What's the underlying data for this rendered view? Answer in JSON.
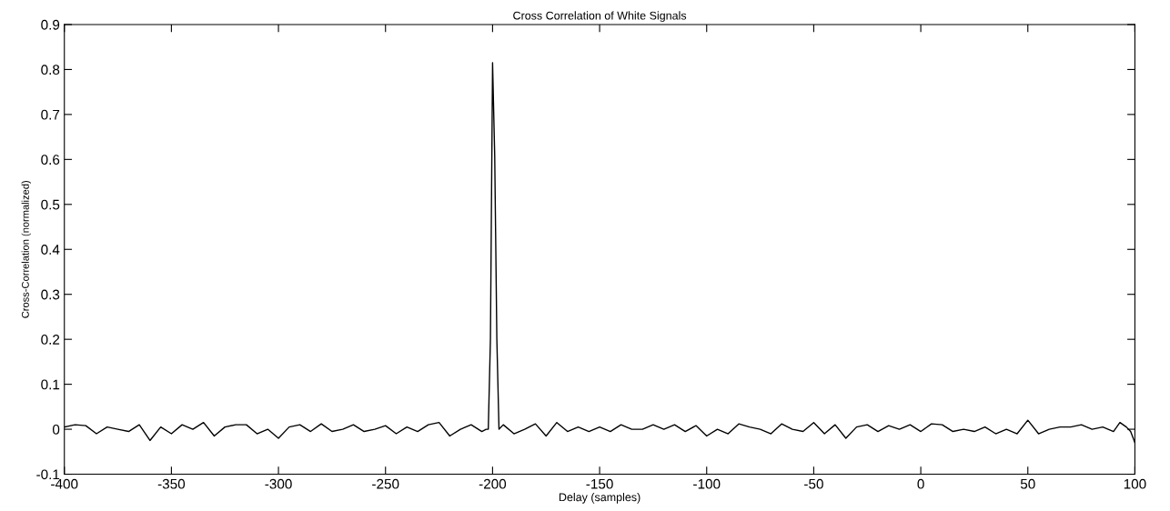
{
  "chart_data": {
    "type": "line",
    "title": "Cross Correlation of White Signals",
    "xlabel": "Delay (samples)",
    "ylabel": "Cross-Correlation (normalized)",
    "x": [
      -400,
      -395,
      -390,
      -385,
      -380,
      -375,
      -370,
      -365,
      -360,
      -355,
      -350,
      -345,
      -340,
      -335,
      -330,
      -325,
      -320,
      -315,
      -310,
      -305,
      -300,
      -295,
      -290,
      -285,
      -280,
      -275,
      -270,
      -265,
      -260,
      -255,
      -250,
      -245,
      -240,
      -235,
      -230,
      -225,
      -220,
      -215,
      -210,
      -205,
      -203,
      -202,
      -201,
      -200,
      -199,
      -198,
      -197,
      -195,
      -190,
      -185,
      -180,
      -175,
      -170,
      -165,
      -160,
      -155,
      -150,
      -145,
      -140,
      -135,
      -130,
      -125,
      -120,
      -115,
      -110,
      -105,
      -100,
      -95,
      -90,
      -85,
      -80,
      -75,
      -70,
      -65,
      -60,
      -55,
      -50,
      -45,
      -40,
      -35,
      -30,
      -25,
      -20,
      -15,
      -10,
      -5,
      0,
      5,
      10,
      15,
      20,
      25,
      30,
      35,
      40,
      45,
      50,
      55,
      60,
      65,
      70,
      75,
      80,
      85,
      90,
      93,
      96,
      98,
      100
    ],
    "series": [
      {
        "color": "#000000",
        "values": [
          0.005,
          0.01,
          0.008,
          -0.01,
          0.005,
          0.0,
          -0.005,
          0.01,
          -0.025,
          0.005,
          -0.01,
          0.01,
          0.0,
          0.015,
          -0.015,
          0.005,
          0.01,
          0.01,
          -0.01,
          0.0,
          -0.02,
          0.005,
          0.01,
          -0.005,
          0.012,
          -0.005,
          0.0,
          0.01,
          -0.005,
          0.0,
          0.008,
          -0.01,
          0.005,
          -0.005,
          0.01,
          0.015,
          -0.015,
          0.0,
          0.01,
          -0.005,
          0.0,
          0.0,
          0.2,
          0.815,
          0.61,
          0.2,
          0.0,
          0.01,
          -0.01,
          0.0,
          0.012,
          -0.015,
          0.015,
          -0.005,
          0.005,
          -0.005,
          0.005,
          -0.005,
          0.01,
          0.0,
          0.0,
          0.01,
          0.0,
          0.01,
          -0.005,
          0.008,
          -0.015,
          0.0,
          -0.01,
          0.012,
          0.005,
          0.0,
          -0.01,
          0.012,
          0.0,
          -0.005,
          0.015,
          -0.01,
          0.01,
          -0.02,
          0.005,
          0.01,
          -0.005,
          0.008,
          0.0,
          0.01,
          -0.005,
          0.012,
          0.01,
          -0.005,
          0.0,
          -0.005,
          0.005,
          -0.01,
          0.0,
          -0.01,
          0.02,
          -0.01,
          0.0,
          0.005,
          0.005,
          0.01,
          0.0,
          0.005,
          -0.005,
          0.015,
          0.005,
          -0.005,
          -0.03
        ]
      }
    ],
    "xlim": [
      -400,
      100
    ],
    "xticks": [
      -400,
      -350,
      -300,
      -250,
      -200,
      -150,
      -100,
      -50,
      0,
      50,
      100
    ],
    "ylim": [
      -0.1,
      0.9
    ],
    "yticks": [
      -0.1,
      0,
      0.1,
      0.2,
      0.3,
      0.4,
      0.5,
      0.6,
      0.7,
      0.8,
      0.9
    ],
    "grid": false,
    "legend": false
  }
}
